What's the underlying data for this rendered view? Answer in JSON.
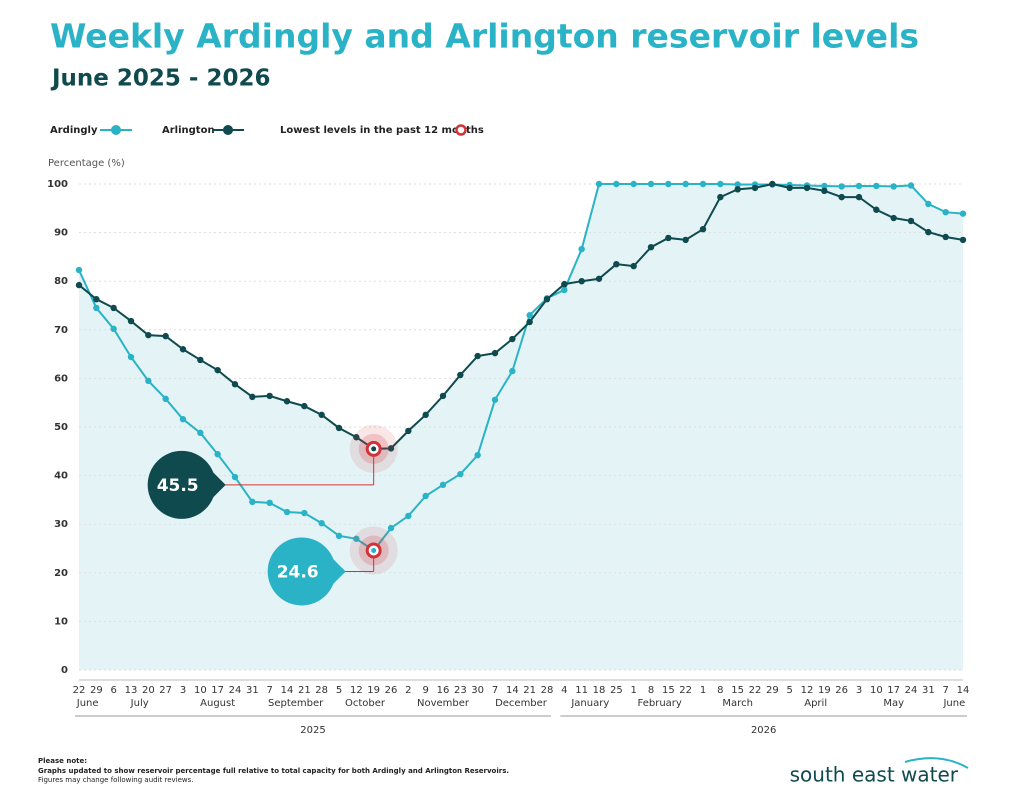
{
  "chart_data": {
    "type": "line",
    "title": "Weekly Ardingly and Arlington reservoir levels",
    "subtitle": "June 2025 - 2026",
    "y_label": "Percentage (%)",
    "lowest_legend": "Lowest levels in the past 12 months",
    "categories": [
      "22",
      "29",
      "6",
      "13",
      "20",
      "27",
      "3",
      "10",
      "17",
      "24",
      "31",
      "7",
      "14",
      "21",
      "28",
      "5",
      "12",
      "19",
      "26",
      "2",
      "9",
      "16",
      "23",
      "30",
      "7",
      "14",
      "21",
      "28",
      "4",
      "11",
      "18",
      "25",
      "1",
      "8",
      "15",
      "22",
      "1",
      "8",
      "15",
      "22",
      "29",
      "5",
      "12",
      "19",
      "26",
      "3",
      "10",
      "17",
      "24",
      "31",
      "7",
      "14"
    ],
    "months": [
      "June",
      null,
      "July",
      null,
      null,
      null,
      "August",
      null,
      null,
      null,
      null,
      "September",
      null,
      null,
      null,
      "October",
      null,
      null,
      null,
      "November",
      null,
      null,
      null,
      null,
      "December",
      null,
      null,
      null,
      "January",
      null,
      null,
      null,
      "February",
      null,
      null,
      null,
      "March",
      null,
      null,
      null,
      null,
      "April",
      null,
      null,
      null,
      "May",
      null,
      null,
      null,
      null,
      "June",
      null
    ],
    "years": [
      "2025",
      null,
      null,
      null,
      null,
      null,
      null,
      null,
      null,
      null,
      null,
      null,
      null,
      null,
      null,
      null,
      null,
      null,
      null,
      null,
      null,
      null,
      null,
      null,
      null,
      null,
      null,
      null,
      "2026",
      null,
      null,
      null,
      null,
      null,
      null,
      null,
      null,
      null,
      null,
      null,
      null,
      null,
      null,
      null,
      null,
      null,
      null,
      null,
      null,
      null,
      null,
      null
    ],
    "series": [
      {
        "name": "Ardingly",
        "color": "#2ab3c6",
        "lowest_label": "24.6",
        "values": [
          82.3,
          74.5,
          70.2,
          64.4,
          59.5,
          55.8,
          51.6,
          48.8,
          44.4,
          39.7,
          34.6,
          34.4,
          32.5,
          32.3,
          30.2,
          27.6,
          27.0,
          24.6,
          29.2,
          31.7,
          35.8,
          38.1,
          40.3,
          44.2,
          55.6,
          61.5,
          73.0,
          76.5,
          78.2,
          86.6,
          100,
          100,
          100,
          100,
          100,
          100,
          100,
          100,
          99.9,
          99.9,
          99.9,
          99.8,
          99.7,
          99.6,
          99.5,
          99.6,
          99.6,
          99.5,
          99.7,
          95.9,
          94.2,
          93.9
        ]
      },
      {
        "name": "Arlington",
        "color": "#0f4a4f",
        "lowest_label": "45.5",
        "values": [
          79.2,
          76.3,
          74.5,
          71.8,
          68.9,
          68.7,
          66.0,
          63.8,
          61.7,
          58.8,
          56.2,
          56.4,
          55.3,
          54.3,
          52.5,
          49.8,
          47.9,
          45.5,
          45.6,
          49.2,
          52.5,
          56.4,
          60.7,
          64.6,
          65.2,
          68.1,
          71.6,
          76.3,
          79.4,
          80.0,
          80.5,
          83.5,
          83.1,
          87.0,
          88.9,
          88.5,
          90.7,
          97.3,
          98.9,
          99.2,
          100,
          99.2,
          99.2,
          98.6,
          97.3,
          97.3,
          94.7,
          93.0,
          92.4,
          90.1,
          89.1,
          88.5
        ]
      }
    ],
    "ylim": [
      0,
      100
    ],
    "yticks": [
      0,
      10,
      20,
      30,
      40,
      50,
      60,
      70,
      80,
      90,
      100
    ],
    "grid": true,
    "fill_color": "#e4f4f6",
    "lowest_color": "#d0343a"
  },
  "footer": {
    "note_title": "Please note:",
    "note_lines": [
      "Graphs updated to show reservoir percentage full relative to total capacity for both Ardingly and Arlington Reservoirs.",
      "Figures may change following audit reviews."
    ],
    "brand": "south east water"
  }
}
